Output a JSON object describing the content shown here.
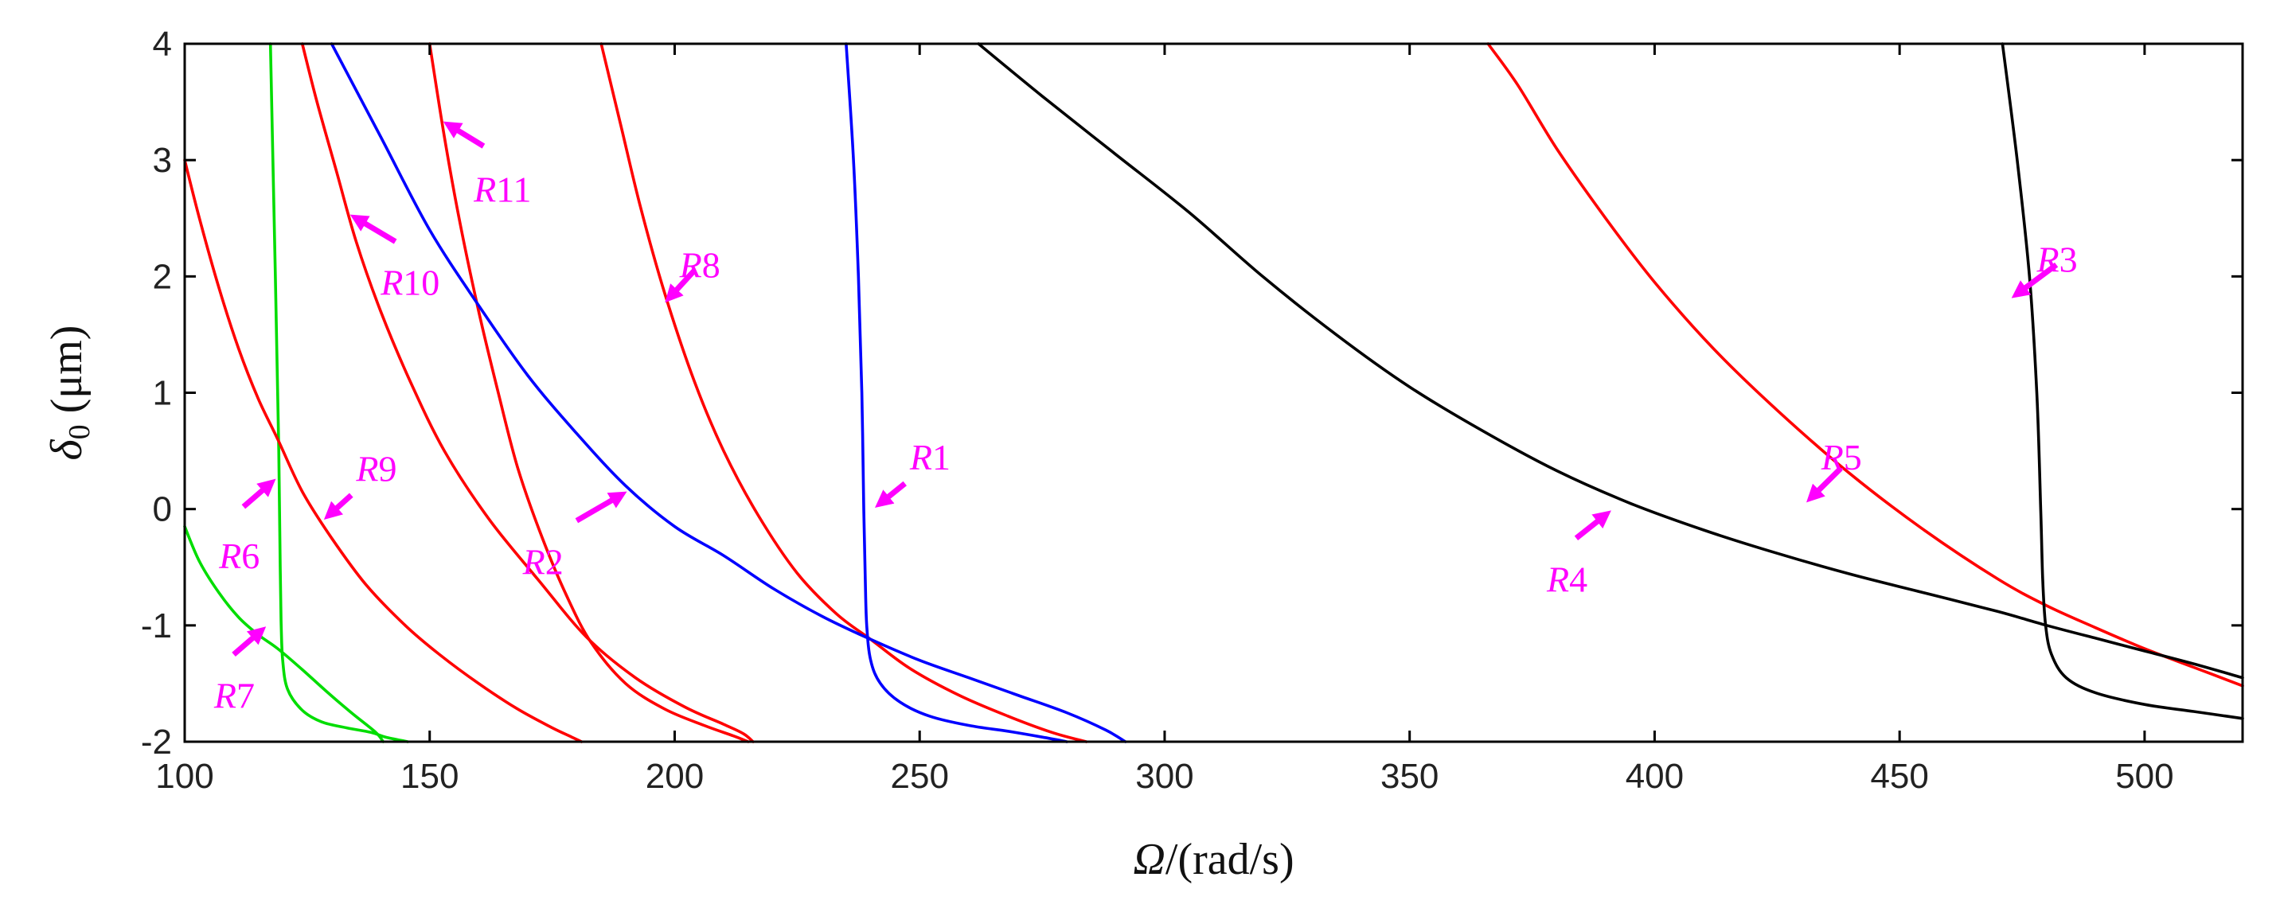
{
  "chart_data": {
    "type": "line",
    "title": "",
    "xlabel_symbol": "Ω",
    "xlabel_unit": "/(rad/s)",
    "ylabel_symbol": "δ",
    "ylabel_sub": "0",
    "ylabel_unit": " (μm)",
    "xlim": [
      100,
      520
    ],
    "ylim": [
      -2,
      4
    ],
    "xticks": [
      100,
      150,
      200,
      250,
      300,
      350,
      400,
      450,
      500
    ],
    "yticks": [
      -2,
      -1,
      0,
      1,
      2,
      3,
      4
    ],
    "grid": false,
    "legend": "none",
    "series": [
      {
        "color": "#00dd00",
        "x": [
          117.5,
          118.5,
          119.2,
          119.5,
          119.7,
          120.0,
          121,
          124,
          128,
          133,
          138,
          141,
          145.5
        ],
        "y": [
          4,
          2.0,
          0.5,
          -0.5,
          -1.0,
          -1.3,
          -1.55,
          -1.73,
          -1.83,
          -1.88,
          -1.92,
          -1.96,
          -2
        ]
      },
      {
        "color": "#00dd00",
        "x": [
          100,
          103,
          107,
          111,
          115,
          119,
          124,
          129,
          134,
          139,
          140.5
        ],
        "y": [
          -0.15,
          -0.45,
          -0.72,
          -0.93,
          -1.08,
          -1.2,
          -1.38,
          -1.57,
          -1.75,
          -1.92,
          -2
        ]
      },
      {
        "color": "#ff0000",
        "x": [
          100,
          103,
          107,
          111,
          115,
          119,
          124,
          130,
          137,
          145,
          152,
          160,
          168,
          175,
          179,
          181
        ],
        "y": [
          3,
          2.5,
          1.9,
          1.38,
          0.95,
          0.6,
          0.15,
          -0.25,
          -0.65,
          -1.0,
          -1.25,
          -1.5,
          -1.72,
          -1.88,
          -1.96,
          -2
        ]
      },
      {
        "color": "#ff0000",
        "x": [
          124,
          127,
          131,
          135,
          140,
          146,
          153,
          162,
          172,
          182,
          192,
          202,
          210,
          214,
          216
        ],
        "y": [
          4,
          3.5,
          2.9,
          2.3,
          1.7,
          1.1,
          0.5,
          -0.08,
          -0.6,
          -1.1,
          -1.45,
          -1.7,
          -1.85,
          -1.93,
          -2
        ]
      },
      {
        "color": "#ff0000",
        "x": [
          150,
          153,
          156,
          160,
          164,
          168,
          173,
          178,
          183,
          190,
          198,
          206,
          212,
          215
        ],
        "y": [
          4,
          3.2,
          2.5,
          1.7,
          1.0,
          0.35,
          -0.25,
          -0.75,
          -1.15,
          -1.5,
          -1.72,
          -1.86,
          -1.95,
          -2
        ]
      },
      {
        "color": "#ff0000",
        "x": [
          185,
          189,
          193,
          198,
          204,
          210,
          217,
          225,
          233,
          240,
          248,
          258,
          268,
          277,
          284
        ],
        "y": [
          4,
          3.3,
          2.6,
          1.85,
          1.1,
          0.5,
          -0.05,
          -0.55,
          -0.9,
          -1.12,
          -1.37,
          -1.6,
          -1.78,
          -1.92,
          -2
        ]
      },
      {
        "color": "#ff0000",
        "x": [
          366,
          372,
          380,
          390,
          400,
          412,
          425,
          440,
          455,
          470,
          480,
          490,
          500,
          510,
          520
        ],
        "y": [
          4,
          3.65,
          3.1,
          2.5,
          1.95,
          1.38,
          0.85,
          0.3,
          -0.18,
          -0.6,
          -0.83,
          -1.02,
          -1.2,
          -1.36,
          -1.52
        ]
      },
      {
        "color": "#0000ff",
        "x": [
          130,
          140,
          150,
          160,
          170,
          180,
          190,
          200,
          210,
          220,
          230,
          240,
          250,
          260,
          270,
          280,
          288,
          292
        ],
        "y": [
          4,
          3.2,
          2.4,
          1.75,
          1.15,
          0.65,
          0.2,
          -0.15,
          -0.4,
          -0.68,
          -0.92,
          -1.12,
          -1.3,
          -1.45,
          -1.6,
          -1.75,
          -1.9,
          -2
        ]
      },
      {
        "color": "#0000ff",
        "x": [
          235,
          236.5,
          237.5,
          238.2,
          238.6,
          238.9,
          239.2,
          240,
          242,
          246,
          252,
          260,
          268,
          275,
          280
        ],
        "y": [
          4,
          3.0,
          2.0,
          1.0,
          0.0,
          -0.6,
          -1.0,
          -1.3,
          -1.5,
          -1.66,
          -1.78,
          -1.86,
          -1.91,
          -1.96,
          -2
        ]
      },
      {
        "color": "#000000",
        "x": [
          262,
          275,
          290,
          305,
          320,
          335,
          350,
          365,
          380,
          395,
          410,
          425,
          440,
          455,
          470,
          480,
          490,
          500,
          510,
          520
        ],
        "y": [
          4,
          3.55,
          3.05,
          2.55,
          2.0,
          1.5,
          1.05,
          0.67,
          0.33,
          0.05,
          -0.18,
          -0.38,
          -0.56,
          -0.72,
          -0.88,
          -1.0,
          -1.11,
          -1.22,
          -1.33,
          -1.45
        ]
      },
      {
        "color": "#000000",
        "x": [
          471,
          474,
          476.5,
          478,
          478.8,
          479.2,
          479.8,
          481,
          484,
          490,
          500,
          510,
          520
        ],
        "y": [
          4,
          3.0,
          2.0,
          1.0,
          0.0,
          -0.6,
          -1.0,
          -1.25,
          -1.45,
          -1.58,
          -1.68,
          -1.74,
          -1.8
        ]
      }
    ],
    "annotations": [
      {
        "prefix": "R",
        "num": "1",
        "label_x": 248,
        "label_y": 0.45,
        "from_x": 247,
        "from_y": 0.22,
        "to_x": 242,
        "to_y": 0.05
      },
      {
        "prefix": "R",
        "num": "2",
        "label_x": 169,
        "label_y": -0.45,
        "from_x": 180,
        "from_y": -0.1,
        "to_x": 189,
        "to_y": 0.12
      },
      {
        "prefix": "R",
        "num": "3",
        "label_x": 478,
        "label_y": 2.15,
        "from_x": 482,
        "from_y": 2.1,
        "to_x": 474,
        "to_y": 1.85
      },
      {
        "prefix": "R",
        "num": "4",
        "label_x": 378,
        "label_y": -0.6,
        "from_x": 384,
        "from_y": -0.25,
        "to_x": 390,
        "to_y": -0.05
      },
      {
        "prefix": "R",
        "num": "5",
        "label_x": 434,
        "label_y": 0.45,
        "from_x": 438,
        "from_y": 0.35,
        "to_x": 432,
        "to_y": 0.1
      },
      {
        "prefix": "R",
        "num": "6",
        "label_x": 107,
        "label_y": -0.4,
        "from_x": 112,
        "from_y": 0.02,
        "to_x": 117.5,
        "to_y": 0.22
      },
      {
        "prefix": "R",
        "num": "7",
        "label_x": 106,
        "label_y": -1.6,
        "from_x": 110,
        "from_y": -1.25,
        "to_x": 115.5,
        "to_y": -1.05
      },
      {
        "prefix": "R",
        "num": "8",
        "label_x": 201,
        "label_y": 2.1,
        "from_x": 204,
        "from_y": 2.05,
        "to_x": 199,
        "to_y": 1.82
      },
      {
        "prefix": "R",
        "num": "9",
        "label_x": 135,
        "label_y": 0.35,
        "from_x": 134,
        "from_y": 0.12,
        "to_x": 129.5,
        "to_y": -0.05
      },
      {
        "prefix": "R",
        "num": "10",
        "label_x": 140,
        "label_y": 1.95,
        "from_x": 143,
        "from_y": 2.3,
        "to_x": 135,
        "to_y": 2.5
      },
      {
        "prefix": "R",
        "num": "11",
        "label_x": 159,
        "label_y": 2.75,
        "from_x": 161,
        "from_y": 3.12,
        "to_x": 154,
        "to_y": 3.3
      }
    ]
  }
}
